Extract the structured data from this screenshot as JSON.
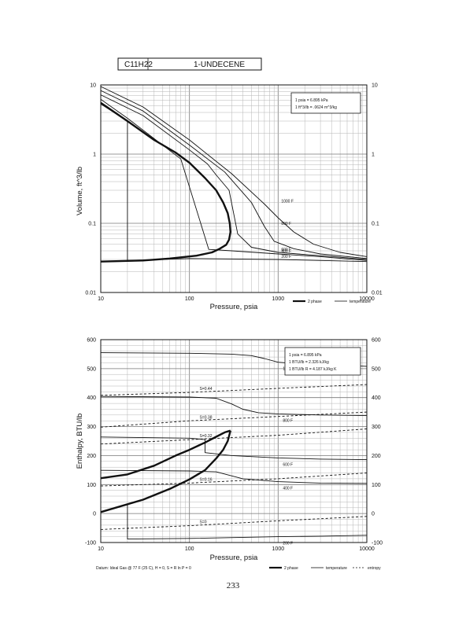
{
  "header": {
    "formula": "C11H22",
    "name": "1-UNDECENE"
  },
  "page_number": "233",
  "chart_data": [
    {
      "type": "line",
      "x_scale": "log",
      "y_scale": "log",
      "xlim": [
        10,
        10000
      ],
      "ylim": [
        0.01,
        10
      ],
      "x_ticks": [
        "10",
        "100",
        "1000",
        "10000"
      ],
      "y_ticks_left": [
        "0.01",
        "0.1",
        "1",
        "10"
      ],
      "y_ticks_right": [
        "0.01",
        "0.1",
        "1",
        "10"
      ],
      "xlabel": "Pressure, psia",
      "ylabel": "Volume, ft^3/lb",
      "grid": true,
      "conversion_box": [
        "1 psia = 6.895 kPa",
        "1 ft^3/lb = .0624 m^3/kg"
      ],
      "legend": [
        {
          "style": "thick",
          "label": "2 phase"
        },
        {
          "style": "thin",
          "label": "temperature"
        }
      ],
      "series": [
        {
          "name": "2 phase",
          "style": "thick",
          "points": [
            [
              10,
              5.5
            ],
            [
              20,
              3.0
            ],
            [
              40,
              1.6
            ],
            [
              70,
              1.05
            ],
            [
              100,
              0.75
            ],
            [
              150,
              0.45
            ],
            [
              200,
              0.3
            ],
            [
              240,
              0.2
            ],
            [
              270,
              0.14
            ],
            [
              285,
              0.1
            ],
            [
              290,
              0.075
            ],
            [
              280,
              0.058
            ],
            [
              260,
              0.049
            ],
            [
              220,
              0.043
            ],
            [
              180,
              0.038
            ],
            [
              120,
              0.034
            ],
            [
              60,
              0.031
            ],
            [
              30,
              0.029
            ],
            [
              10,
              0.028
            ]
          ]
        },
        {
          "name": "1000 F",
          "label": "1000 F",
          "style": "thin",
          "points": [
            [
              10,
              9.5
            ],
            [
              30,
              4.8
            ],
            [
              100,
              1.6
            ],
            [
              300,
              0.52
            ],
            [
              700,
              0.19
            ],
            [
              1000,
              0.12
            ],
            [
              1500,
              0.075
            ],
            [
              2500,
              0.05
            ],
            [
              5000,
              0.038
            ],
            [
              10000,
              0.033
            ]
          ]
        },
        {
          "name": "800 F",
          "label": "800 F",
          "style": "thin",
          "points": [
            [
              10,
              8.3
            ],
            [
              30,
              4.2
            ],
            [
              100,
              1.35
            ],
            [
              250,
              0.55
            ],
            [
              500,
              0.2
            ],
            [
              700,
              0.09
            ],
            [
              900,
              0.055
            ],
            [
              1500,
              0.043
            ],
            [
              3000,
              0.036
            ],
            [
              10000,
              0.031
            ]
          ]
        },
        {
          "name": "600 F",
          "label": "600 F",
          "style": "thin",
          "points": [
            [
              10,
              7.2
            ],
            [
              30,
              3.6
            ],
            [
              100,
              1.15
            ],
            [
              160,
              0.72
            ],
            [
              200,
              0.5
            ],
            [
              280,
              0.3
            ],
            [
              350,
              0.07
            ],
            [
              500,
              0.045
            ],
            [
              1000,
              0.038
            ],
            [
              3000,
              0.034
            ],
            [
              10000,
              0.03
            ]
          ]
        },
        {
          "name": "400 F",
          "label": "400 F",
          "style": "thin",
          "points": [
            [
              10,
              6.2
            ],
            [
              20,
              3.3
            ],
            [
              80,
              0.85
            ],
            [
              165,
              0.042
            ],
            [
              300,
              0.04
            ],
            [
              1000,
              0.036
            ],
            [
              3000,
              0.033
            ],
            [
              10000,
              0.029
            ]
          ]
        },
        {
          "name": "200 F",
          "label": "200 F",
          "style": "thin",
          "points": [
            [
              10,
              5.3
            ],
            [
              20,
              3.0
            ],
            [
              20,
              0.029
            ],
            [
              100,
              0.031
            ],
            [
              1000,
              0.03
            ],
            [
              10000,
              0.028
            ]
          ]
        }
      ]
    },
    {
      "type": "line",
      "x_scale": "log",
      "y_scale": "linear",
      "xlim": [
        10,
        10000
      ],
      "ylim": [
        -100,
        600
      ],
      "x_ticks": [
        "10",
        "100",
        "1000",
        "10000"
      ],
      "y_ticks_left": [
        "-100",
        "0",
        "100",
        "200",
        "300",
        "400",
        "500",
        "600"
      ],
      "y_ticks_right": [
        "-100",
        "0",
        "100",
        "200",
        "300",
        "400",
        "500",
        "600"
      ],
      "xlabel": "Pressure, psia",
      "ylabel": "Enthalpy, BTU/lb",
      "grid": true,
      "conversion_box": [
        "1 psia = 6.895 kPa",
        "1 BTU/lb = 2.326 kJ/kg",
        "1 BTU/lb R = 4.187 kJ/kg K"
      ],
      "footnote": "Datum: Ideal Gas @ 77 F (25 C), H = 0, S = R ln P = 0",
      "legend": [
        {
          "style": "thick",
          "label": "2 phase"
        },
        {
          "style": "thin",
          "label": "temperature"
        },
        {
          "style": "dashed",
          "label": "entropy"
        }
      ],
      "series": [
        {
          "name": "2 phase upper",
          "style": "thick",
          "points": [
            [
              10,
              122
            ],
            [
              20,
              135
            ],
            [
              40,
              165
            ],
            [
              70,
              200
            ],
            [
              100,
              220
            ],
            [
              150,
              245
            ],
            [
              200,
              265
            ],
            [
              250,
              280
            ],
            [
              290,
              286
            ]
          ]
        },
        {
          "name": "2 phase lower",
          "style": "thick",
          "points": [
            [
              290,
              286
            ],
            [
              270,
              250
            ],
            [
              240,
              220
            ],
            [
              200,
              190
            ],
            [
              150,
              150
            ],
            [
              100,
              118
            ],
            [
              60,
              85
            ],
            [
              30,
              48
            ],
            [
              10,
              5
            ]
          ]
        },
        {
          "name": "1000 F",
          "label": "1000 F",
          "style": "thin",
          "points": [
            [
              10,
              555
            ],
            [
              100,
              553
            ],
            [
              300,
              550
            ],
            [
              500,
              545
            ],
            [
              700,
              535
            ],
            [
              1000,
              522
            ],
            [
              2000,
              515
            ],
            [
              5000,
              512
            ],
            [
              10000,
              508
            ]
          ]
        },
        {
          "name": "800 F",
          "label": "800 F",
          "style": "thin",
          "points": [
            [
              10,
              404
            ],
            [
              100,
              402
            ],
            [
              200,
              398
            ],
            [
              300,
              378
            ],
            [
              400,
              360
            ],
            [
              600,
              348
            ],
            [
              1000,
              344
            ],
            [
              3000,
              340
            ],
            [
              10000,
              338
            ]
          ]
        },
        {
          "name": "600 F",
          "label": "600 F",
          "style": "thin",
          "points": [
            [
              10,
              264
            ],
            [
              100,
              260
            ],
            [
              150,
              255
            ],
            [
              150,
              210
            ],
            [
              300,
              200
            ],
            [
              1000,
              192
            ],
            [
              3000,
              188
            ],
            [
              10000,
              186
            ]
          ]
        },
        {
          "name": "400 F",
          "label": "400 F",
          "style": "thin",
          "points": [
            [
              10,
              149
            ],
            [
              100,
              147
            ],
            [
              200,
              144
            ],
            [
              400,
              120
            ],
            [
              1000,
              110
            ],
            [
              3000,
              105
            ],
            [
              10000,
              104
            ]
          ]
        },
        {
          "name": "200 F",
          "label": "200 F",
          "style": "thin",
          "points": [
            [
              20,
              30
            ],
            [
              20,
              -88
            ],
            [
              100,
              -86
            ],
            [
              1000,
              -80
            ],
            [
              3000,
              -78
            ],
            [
              10000,
              -75
            ]
          ]
        },
        {
          "name": "S=0.44",
          "label": "S=0.44",
          "style": "dashed",
          "points": [
            [
              10,
              408
            ],
            [
              100,
              418
            ],
            [
              1000,
              432
            ],
            [
              10000,
              445
            ]
          ]
        },
        {
          "name": "S=0.38",
          "label": "S=0.38",
          "style": "dashed",
          "points": [
            [
              10,
              298
            ],
            [
              100,
              320
            ],
            [
              1000,
              335
            ],
            [
              10000,
              350
            ]
          ]
        },
        {
          "name": "S=0.32",
          "label": "S=0.32",
          "style": "dashed",
          "points": [
            [
              10,
              240
            ],
            [
              100,
              255
            ],
            [
              1000,
              270
            ],
            [
              10000,
              292
            ]
          ]
        },
        {
          "name": "S=0.16",
          "label": "S=0.16",
          "style": "dashed",
          "points": [
            [
              10,
              95
            ],
            [
              100,
              105
            ],
            [
              1000,
              120
            ],
            [
              10000,
              140
            ]
          ]
        },
        {
          "name": "S=0",
          "label": "S=0",
          "style": "dashed",
          "points": [
            [
              10,
              -55
            ],
            [
              100,
              -42
            ],
            [
              1000,
              -25
            ],
            [
              10000,
              -10
            ]
          ]
        }
      ]
    }
  ]
}
